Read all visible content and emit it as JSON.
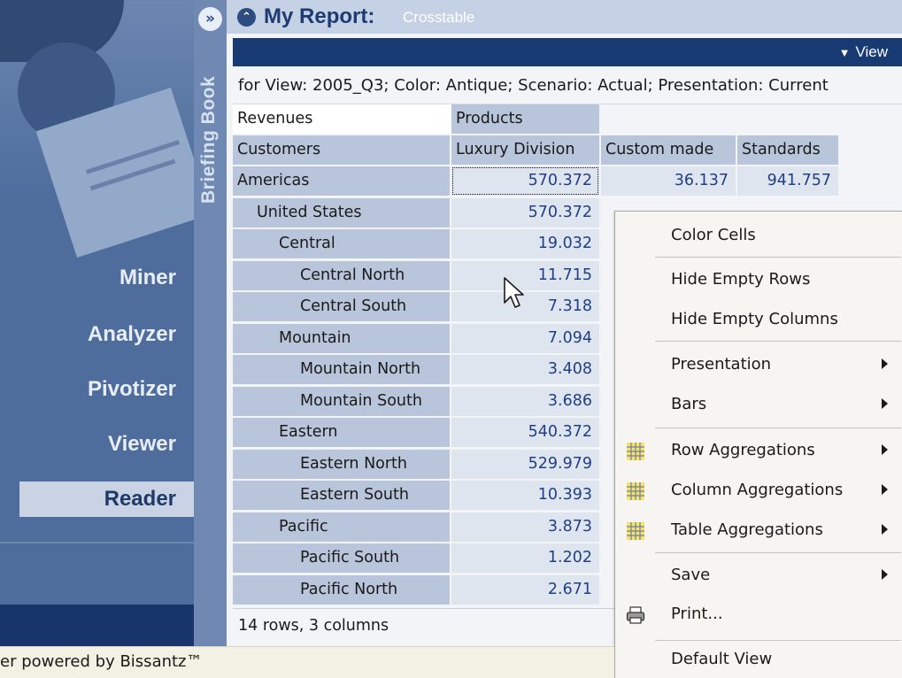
{
  "nav": {
    "items": [
      {
        "label": "Miner"
      },
      {
        "label": "Analyzer"
      },
      {
        "label": "Pivotizer"
      },
      {
        "label": "Viewer"
      },
      {
        "label": "Reader",
        "selected": true
      }
    ]
  },
  "strip": {
    "toggle_glyph": "»",
    "label": "Briefing Book"
  },
  "report": {
    "title": "My Report:",
    "subtitle": "Crosstable",
    "title_icon_glyph": "⌃",
    "view_label": "View",
    "filter": "for View: 2005_Q3; Color: Antique; Scenario: Actual; Presentation: Current",
    "status": "14 rows, 3 columns"
  },
  "crosstab": {
    "measure": "Revenues",
    "column_dimension": "Products",
    "row_dimension": "Customers",
    "columns": [
      "Luxury Division",
      "Custom made",
      "Standards"
    ],
    "rows": [
      {
        "label": "Americas",
        "level": 0,
        "values": [
          "570.372",
          "36.137",
          "941.757"
        ]
      },
      {
        "label": "United States",
        "level": 1,
        "values": [
          "570.372"
        ]
      },
      {
        "label": "Central",
        "level": 2,
        "values": [
          "19.032"
        ]
      },
      {
        "label": "Central North",
        "level": 3,
        "values": [
          "11.715"
        ]
      },
      {
        "label": "Central South",
        "level": 3,
        "values": [
          "7.318"
        ]
      },
      {
        "label": "Mountain",
        "level": 2,
        "values": [
          "7.094"
        ]
      },
      {
        "label": "Mountain North",
        "level": 3,
        "values": [
          "3.408"
        ]
      },
      {
        "label": "Mountain South",
        "level": 3,
        "values": [
          "3.686"
        ]
      },
      {
        "label": "Eastern",
        "level": 2,
        "values": [
          "540.372"
        ]
      },
      {
        "label": "Eastern North",
        "level": 3,
        "values": [
          "529.979"
        ]
      },
      {
        "label": "Eastern South",
        "level": 3,
        "values": [
          "10.393"
        ]
      },
      {
        "label": "Pacific",
        "level": 2,
        "values": [
          "3.873"
        ]
      },
      {
        "label": "Pacific South",
        "level": 3,
        "values": [
          "1.202"
        ]
      },
      {
        "label": "Pacific North",
        "level": 3,
        "values": [
          "2.671"
        ]
      }
    ]
  },
  "context_menu": {
    "items": [
      {
        "label": "Color Cells",
        "submenu": false
      },
      {
        "label": "Hide Empty Rows",
        "submenu": false
      },
      {
        "label": "Hide Empty Columns",
        "submenu": false
      },
      {
        "label": "Presentation",
        "submenu": true
      },
      {
        "label": "Bars",
        "submenu": true
      },
      {
        "label": "Row Aggregations",
        "submenu": true,
        "icon": "grid-icon"
      },
      {
        "label": "Column Aggregations",
        "submenu": true,
        "icon": "grid-icon"
      },
      {
        "label": "Table Aggregations",
        "submenu": true,
        "icon": "grid-icon"
      },
      {
        "label": "Save",
        "submenu": true
      },
      {
        "label": "Print...",
        "submenu": false,
        "icon": "printer-icon"
      },
      {
        "label": "Default View",
        "submenu": false
      }
    ]
  },
  "footer": {
    "text": "er powered by Bissantz™"
  },
  "colors": {
    "nav_panel": "#4e6d9c",
    "nav_selected": "#c9d3e3",
    "header_band": "#173a73",
    "row_header": "#b8c5da",
    "value_cell": "#dfe5ef",
    "value_text": "#1f3f86",
    "menu_bg": "#f6f5f1"
  }
}
